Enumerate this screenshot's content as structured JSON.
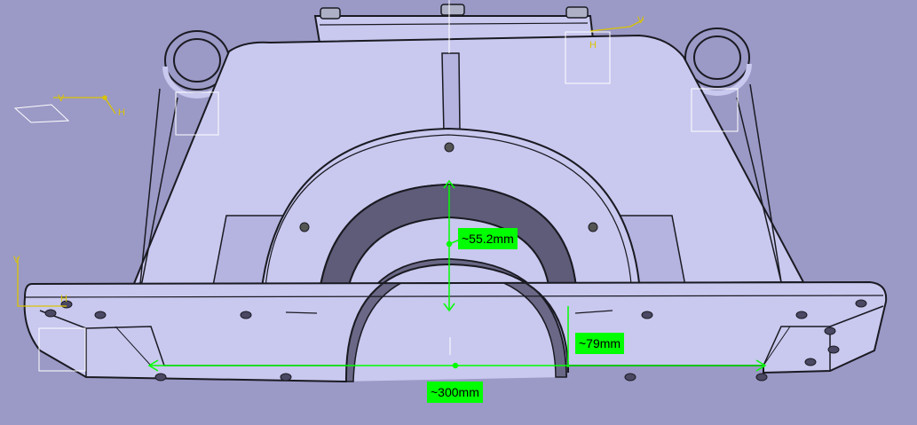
{
  "viewport": {
    "background": "#9b99c6",
    "part_fill": "#c9c8ef",
    "part_shade": "#b5b3e0",
    "edge_color": "#1a1a22"
  },
  "dimensions": [
    {
      "id": "bore-depth",
      "text": "~55.2mm"
    },
    {
      "id": "flange-height",
      "text": "~79mm"
    },
    {
      "id": "base-width",
      "text": "~300mm"
    }
  ],
  "dimension_color": "#00ff00",
  "axis_color": "#d9c400",
  "axis_labels": {
    "left_top": {
      "v": "V",
      "h": "H"
    },
    "left_bottom": {
      "v": "V",
      "h": "H"
    },
    "right_top": {
      "v": "V",
      "h": "H"
    }
  }
}
